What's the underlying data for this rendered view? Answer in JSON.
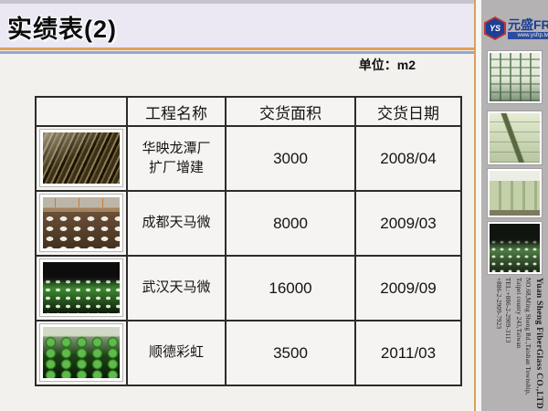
{
  "slide": {
    "title": "实绩表(2)",
    "unit_label": "单位：m2"
  },
  "table": {
    "headers": {
      "photo": "",
      "name": "工程名称",
      "area": "交货面积",
      "date": "交货日期"
    },
    "rows": [
      {
        "photo": "construction-steel-beams",
        "name": [
          "华映龙潭厂",
          "扩厂增建"
        ],
        "area": "3000",
        "date": "2008/04"
      },
      {
        "photo": "white-tank-forms-field",
        "name": [
          "成都天马微"
        ],
        "area": "8000",
        "date": "2009/03"
      },
      {
        "photo": "dark-green-dot-floor",
        "name": [
          "武汉天马微"
        ],
        "area": "16000",
        "date": "2009/09"
      },
      {
        "photo": "green-dome-rows",
        "name": [
          "顺德彩虹"
        ],
        "area": "3500",
        "date": "2011/03"
      }
    ]
  },
  "sidebar": {
    "logo": {
      "badge": "YS",
      "brand": "元盛FRP",
      "url": "www.ysfrp.tw"
    },
    "photos": [
      "waffle-slab-ceiling",
      "frp-tank-closeup",
      "frp-storage-tanks",
      "dot-floor-interior"
    ],
    "company": {
      "name": "Yuan Sheng FiberGlass CO.,LTD",
      "address1": "NO.68,Ming Sheng Rd.,Taishan Township,",
      "address2": "Taipei county 243,Taiwan",
      "tel1": "TEL:+886-2-2909-3113",
      "tel2": "+886-2-2909-7923"
    }
  },
  "colors": {
    "rule_orange": "#dfa258",
    "rule_blue": "#92a7d4",
    "title_band": "#ebe7f3",
    "sidebar_gray": "#b5b2b4",
    "logo_blue": "#1d3f96",
    "logo_red": "#c03434"
  }
}
